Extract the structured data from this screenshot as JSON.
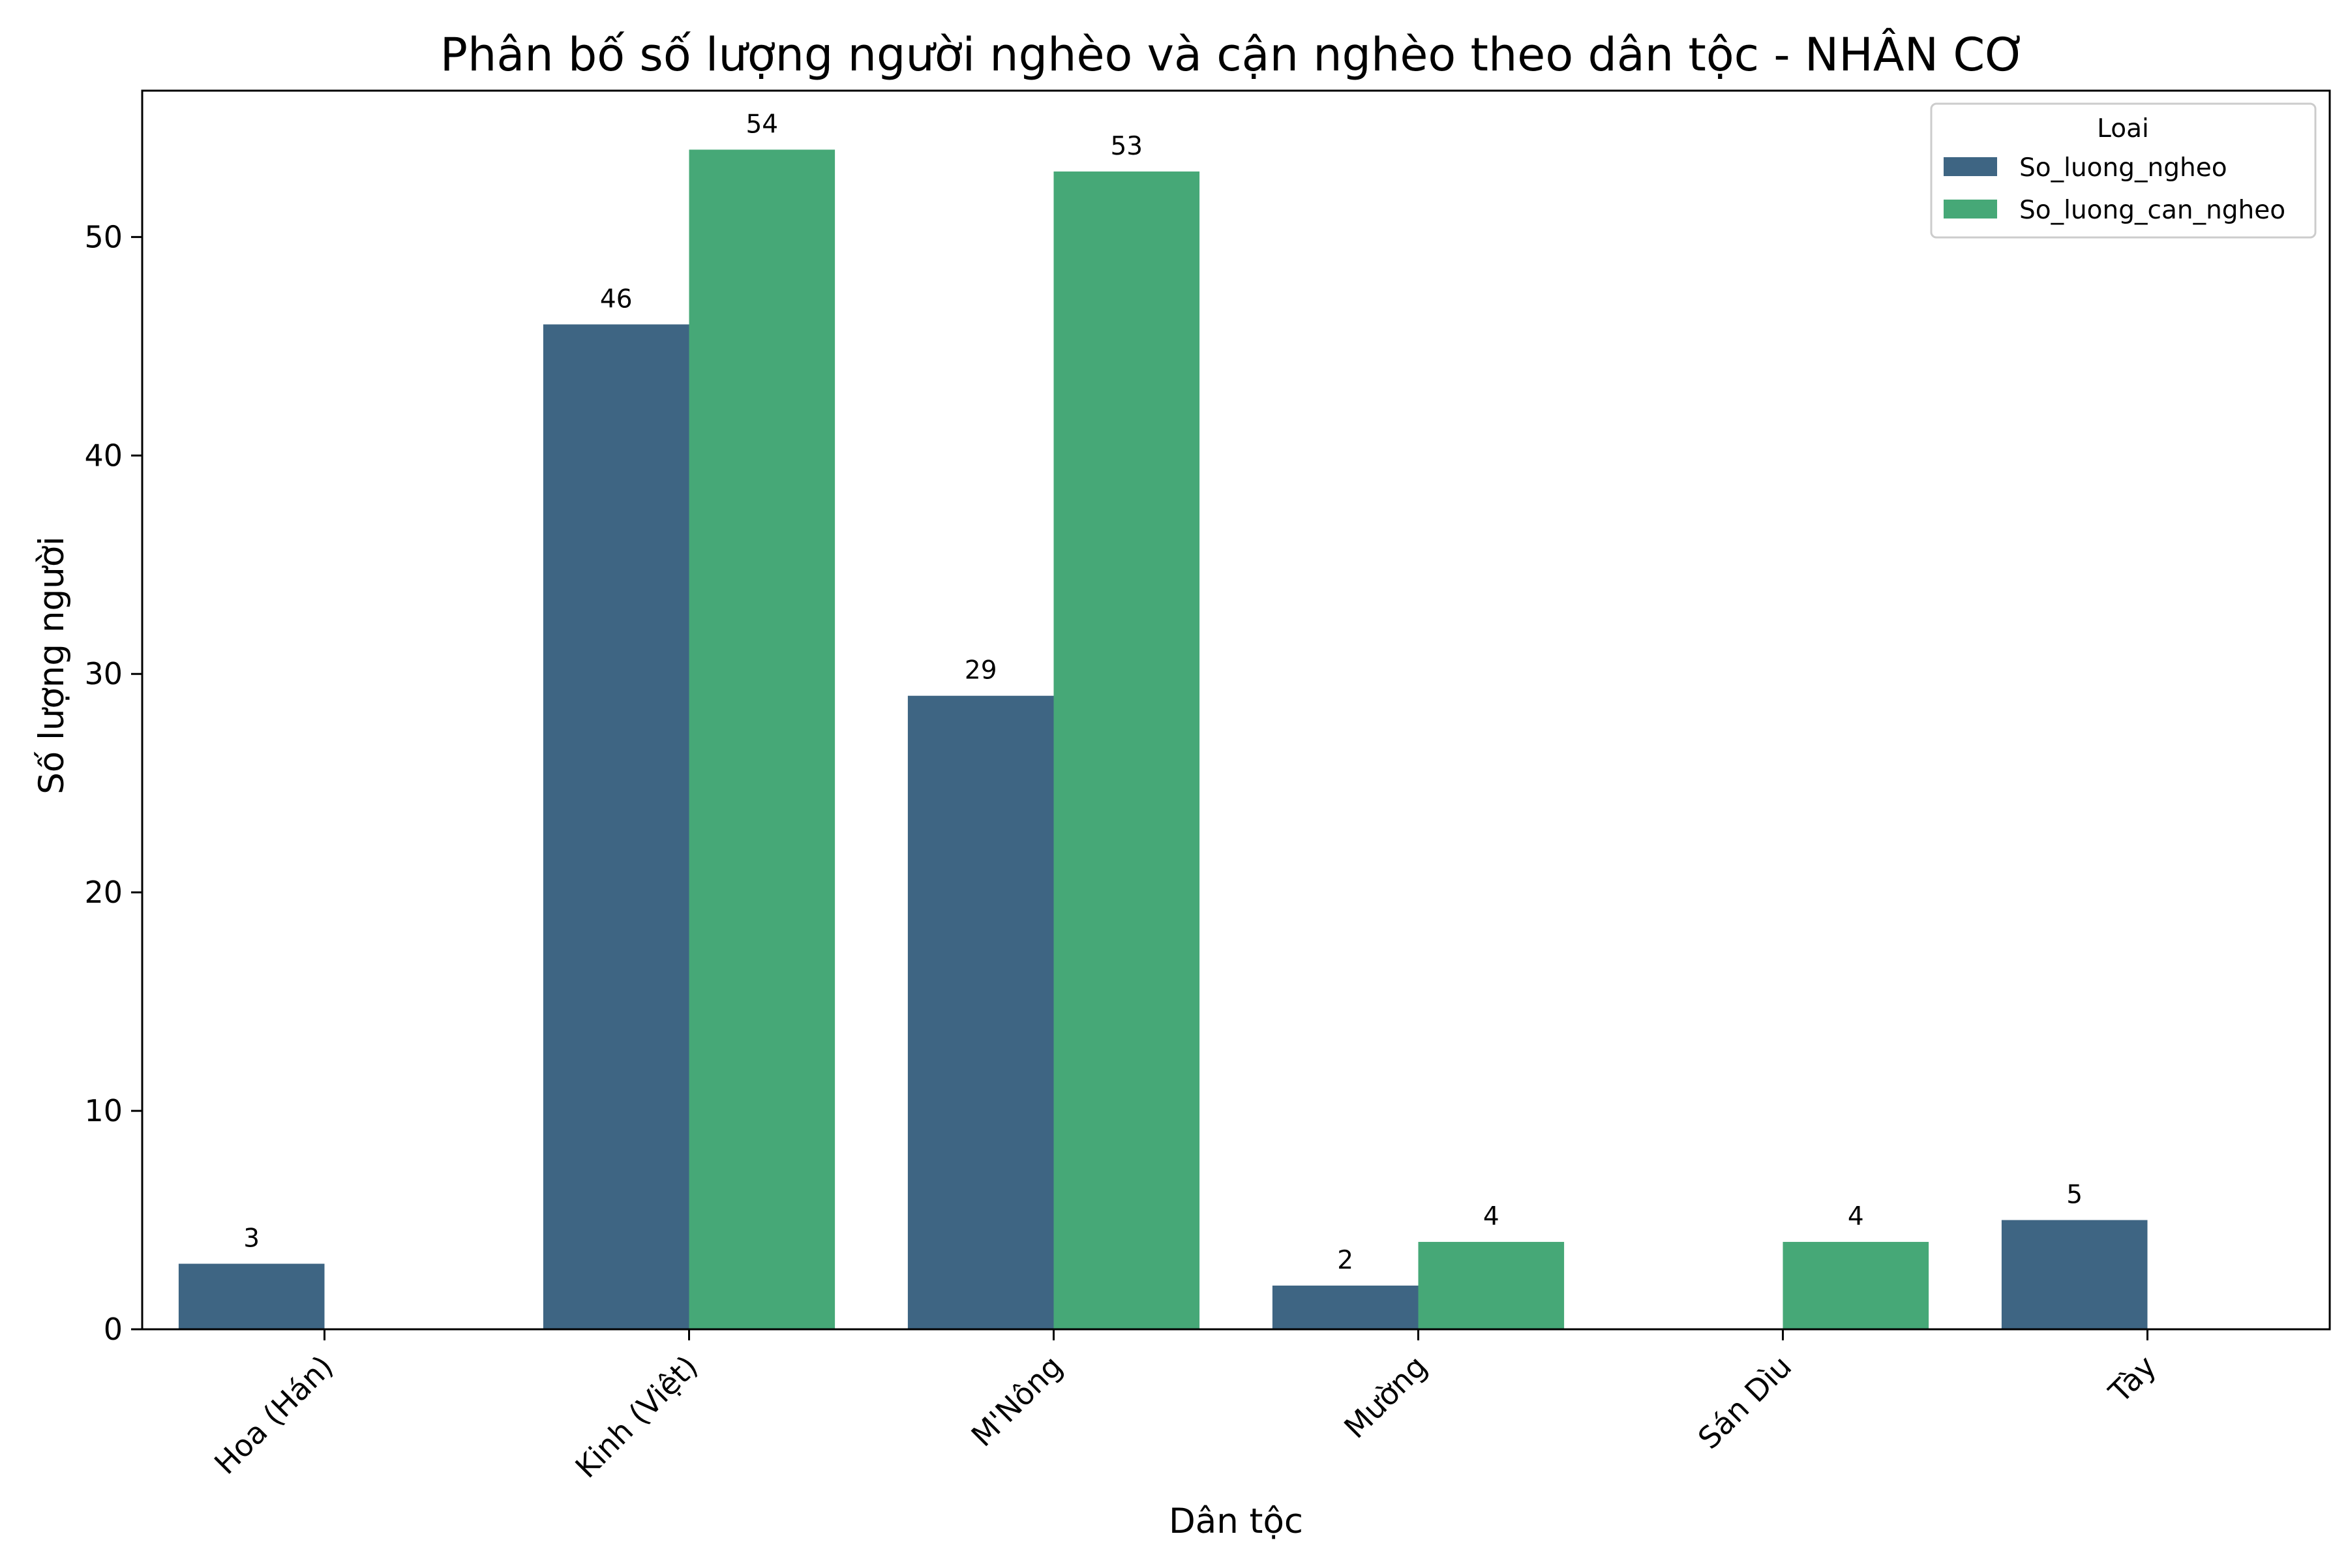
{
  "chart_data": {
    "type": "bar",
    "title": "Phân bố số lượng người nghèo và cận nghèo theo dân tộc - NHÂN CƠ",
    "xlabel": "Dân tộc",
    "ylabel": "Số lượng người",
    "categories": [
      "Hoa (Hán)",
      "Kinh (Việt)",
      "M'Nông",
      "Mường",
      "Sán Dìu",
      "Tày"
    ],
    "series": [
      {
        "name": "So_luong_ngheo",
        "color": "#3e6583",
        "values": [
          3,
          46,
          29,
          2,
          null,
          5
        ]
      },
      {
        "name": "So_luong_can_ngheo",
        "color": "#46a877",
        "values": [
          null,
          54,
          53,
          4,
          4,
          null
        ]
      }
    ],
    "ylim": [
      0,
      56.7
    ],
    "yticks": [
      0,
      10,
      20,
      30,
      40,
      50
    ],
    "legend": {
      "title": "Loai",
      "position": "top-right"
    },
    "grid": false,
    "xtick_rotation": 45,
    "data_labels": true
  }
}
